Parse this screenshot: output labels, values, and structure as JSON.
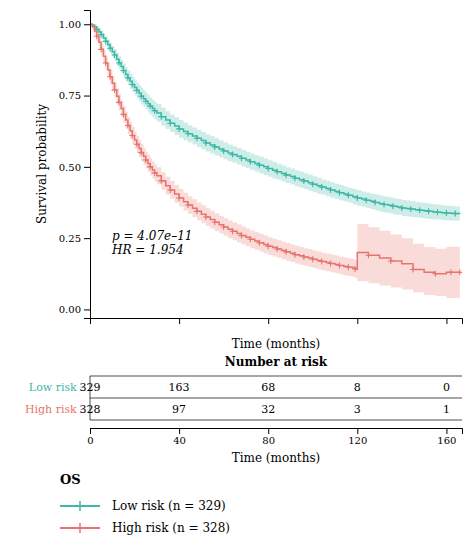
{
  "chart_data": [
    {
      "type": "step",
      "xlabel": "Time (months)",
      "ylabel": "Survival probability",
      "xlim": [
        0,
        167
      ],
      "ylim": [
        -0.03,
        1.05
      ],
      "xticks": [
        0,
        40,
        80,
        120,
        160
      ],
      "yticks": [
        {
          "value": 0.0,
          "label": "0.00"
        },
        {
          "value": 0.25,
          "label": "0.25"
        },
        {
          "value": 0.5,
          "label": "0.50"
        },
        {
          "value": 0.75,
          "label": "0.75"
        },
        {
          "value": 1.0,
          "label": "1.00"
        }
      ],
      "tick_labels": "y",
      "annotations": [
        "p = 4.07e–11\nHR = 1.954"
      ],
      "legend": "bottom",
      "legend_title": "OS",
      "series": [
        {
          "name": "Low risk (n = 329)",
          "color": "#3cb8a5",
          "marker": "plus",
          "x": [
            0,
            1,
            2,
            3,
            4,
            5,
            6,
            7,
            8,
            9,
            10,
            11,
            12,
            13,
            14,
            15,
            16,
            17,
            18,
            19,
            20,
            21,
            22,
            23,
            24,
            25,
            26,
            27,
            28,
            29,
            30,
            32,
            34,
            36,
            38,
            40,
            42,
            44,
            46,
            48,
            50,
            52,
            54,
            56,
            58,
            60,
            62,
            64,
            66,
            68,
            70,
            72,
            74,
            76,
            78,
            80,
            82,
            84,
            86,
            88,
            90,
            92,
            94,
            96,
            98,
            100,
            102,
            104,
            106,
            108,
            110,
            112,
            114,
            116,
            118,
            120,
            122,
            124,
            126,
            128,
            130,
            132,
            134,
            136,
            138,
            140,
            142,
            144,
            146,
            148,
            150,
            152,
            154,
            156,
            158,
            160,
            162,
            164,
            166
          ],
          "values": [
            1.0,
            0.997,
            0.991,
            0.982,
            0.973,
            0.964,
            0.952,
            0.94,
            0.928,
            0.916,
            0.904,
            0.892,
            0.877,
            0.865,
            0.852,
            0.838,
            0.824,
            0.812,
            0.8,
            0.789,
            0.778,
            0.768,
            0.758,
            0.748,
            0.739,
            0.73,
            0.721,
            0.713,
            0.705,
            0.697,
            0.689,
            0.676,
            0.664,
            0.653,
            0.643,
            0.633,
            0.624,
            0.616,
            0.608,
            0.6,
            0.592,
            0.584,
            0.577,
            0.57,
            0.563,
            0.556,
            0.549,
            0.543,
            0.537,
            0.53,
            0.524,
            0.518,
            0.512,
            0.506,
            0.5,
            0.494,
            0.488,
            0.483,
            0.477,
            0.471,
            0.466,
            0.46,
            0.455,
            0.45,
            0.444,
            0.439,
            0.434,
            0.429,
            0.424,
            0.419,
            0.414,
            0.409,
            0.405,
            0.4,
            0.395,
            0.391,
            0.387,
            0.383,
            0.379,
            0.375,
            0.371,
            0.368,
            0.365,
            0.362,
            0.359,
            0.356,
            0.354,
            0.352,
            0.35,
            0.348,
            0.346,
            0.344,
            0.342,
            0.341,
            0.339,
            0.338,
            0.337,
            0.336,
            0.335
          ],
          "upper": [
            1.0,
            1.0,
            0.999,
            0.993,
            0.986,
            0.978,
            0.968,
            0.957,
            0.946,
            0.935,
            0.924,
            0.913,
            0.899,
            0.887,
            0.875,
            0.862,
            0.849,
            0.838,
            0.827,
            0.816,
            0.806,
            0.796,
            0.786,
            0.777,
            0.768,
            0.759,
            0.751,
            0.743,
            0.735,
            0.727,
            0.72,
            0.707,
            0.695,
            0.684,
            0.674,
            0.664,
            0.655,
            0.646,
            0.638,
            0.63,
            0.622,
            0.614,
            0.607,
            0.6,
            0.592,
            0.585,
            0.578,
            0.572,
            0.566,
            0.559,
            0.553,
            0.547,
            0.541,
            0.535,
            0.529,
            0.523,
            0.517,
            0.511,
            0.505,
            0.499,
            0.494,
            0.488,
            0.483,
            0.478,
            0.472,
            0.467,
            0.462,
            0.456,
            0.451,
            0.446,
            0.441,
            0.436,
            0.431,
            0.426,
            0.422,
            0.418,
            0.414,
            0.41,
            0.406,
            0.403,
            0.399,
            0.396,
            0.393,
            0.39,
            0.387,
            0.384,
            0.382,
            0.38,
            0.377,
            0.375,
            0.373,
            0.371,
            0.369,
            0.367,
            0.365,
            0.364,
            0.362,
            0.361,
            0.36
          ],
          "lower": [
            1.0,
            0.994,
            0.983,
            0.971,
            0.96,
            0.95,
            0.936,
            0.923,
            0.91,
            0.897,
            0.884,
            0.871,
            0.855,
            0.843,
            0.829,
            0.814,
            0.799,
            0.786,
            0.773,
            0.762,
            0.75,
            0.74,
            0.73,
            0.719,
            0.71,
            0.701,
            0.691,
            0.683,
            0.675,
            0.667,
            0.658,
            0.645,
            0.633,
            0.622,
            0.612,
            0.602,
            0.593,
            0.586,
            0.578,
            0.57,
            0.562,
            0.554,
            0.547,
            0.54,
            0.534,
            0.527,
            0.52,
            0.514,
            0.508,
            0.501,
            0.495,
            0.489,
            0.483,
            0.477,
            0.471,
            0.465,
            0.459,
            0.455,
            0.449,
            0.443,
            0.438,
            0.432,
            0.427,
            0.422,
            0.416,
            0.411,
            0.406,
            0.402,
            0.397,
            0.392,
            0.387,
            0.382,
            0.379,
            0.374,
            0.368,
            0.364,
            0.36,
            0.356,
            0.352,
            0.347,
            0.343,
            0.34,
            0.337,
            0.334,
            0.331,
            0.328,
            0.326,
            0.324,
            0.323,
            0.321,
            0.319,
            0.317,
            0.315,
            0.315,
            0.313,
            0.312,
            0.312,
            0.311,
            0.31
          ]
        },
        {
          "name": "High risk (n = 328)",
          "color": "#e8736c",
          "marker": "plus",
          "x": [
            0,
            1,
            2,
            3,
            4,
            5,
            6,
            7,
            8,
            9,
            10,
            11,
            12,
            13,
            14,
            15,
            16,
            17,
            18,
            19,
            20,
            21,
            22,
            23,
            24,
            25,
            26,
            27,
            28,
            29,
            30,
            32,
            34,
            36,
            38,
            40,
            42,
            44,
            46,
            48,
            50,
            52,
            54,
            56,
            58,
            60,
            62,
            64,
            66,
            68,
            70,
            72,
            74,
            76,
            78,
            80,
            82,
            84,
            86,
            88,
            90,
            92,
            94,
            96,
            98,
            100,
            102,
            104,
            106,
            108,
            110,
            112,
            114,
            116,
            118,
            119,
            120,
            125,
            130,
            135,
            140,
            145,
            150,
            155,
            160,
            162,
            164,
            166
          ],
          "values": [
            1.0,
            0.991,
            0.976,
            0.958,
            0.937,
            0.912,
            0.888,
            0.864,
            0.84,
            0.816,
            0.793,
            0.77,
            0.748,
            0.726,
            0.705,
            0.684,
            0.664,
            0.645,
            0.627,
            0.61,
            0.594,
            0.579,
            0.564,
            0.55,
            0.537,
            0.524,
            0.512,
            0.5,
            0.489,
            0.479,
            0.469,
            0.451,
            0.434,
            0.419,
            0.405,
            0.391,
            0.378,
            0.366,
            0.355,
            0.344,
            0.334,
            0.324,
            0.315,
            0.306,
            0.297,
            0.289,
            0.281,
            0.274,
            0.266,
            0.259,
            0.253,
            0.246,
            0.24,
            0.234,
            0.228,
            0.222,
            0.217,
            0.212,
            0.207,
            0.202,
            0.197,
            0.192,
            0.188,
            0.184,
            0.18,
            0.176,
            0.172,
            0.168,
            0.165,
            0.161,
            0.158,
            0.154,
            0.151,
            0.148,
            0.145,
            0.142,
            0.2,
            0.19,
            0.18,
            0.17,
            0.16,
            0.14,
            0.13,
            0.125,
            0.13,
            0.13,
            0.13,
            0.13
          ],
          "upper": [
            1.0,
            0.999,
            0.99,
            0.975,
            0.956,
            0.933,
            0.91,
            0.887,
            0.864,
            0.841,
            0.819,
            0.797,
            0.775,
            0.754,
            0.733,
            0.713,
            0.693,
            0.675,
            0.657,
            0.64,
            0.624,
            0.609,
            0.594,
            0.58,
            0.567,
            0.554,
            0.542,
            0.53,
            0.519,
            0.509,
            0.499,
            0.481,
            0.465,
            0.45,
            0.436,
            0.422,
            0.409,
            0.397,
            0.386,
            0.375,
            0.365,
            0.355,
            0.346,
            0.337,
            0.328,
            0.32,
            0.312,
            0.305,
            0.298,
            0.291,
            0.284,
            0.277,
            0.271,
            0.265,
            0.259,
            0.253,
            0.248,
            0.243,
            0.238,
            0.233,
            0.228,
            0.223,
            0.219,
            0.215,
            0.211,
            0.207,
            0.203,
            0.199,
            0.196,
            0.192,
            0.189,
            0.185,
            0.182,
            0.179,
            0.176,
            0.173,
            0.3,
            0.288,
            0.276,
            0.263,
            0.25,
            0.23,
            0.219,
            0.213,
            0.22,
            0.22,
            0.22,
            0.22
          ],
          "lower": [
            1.0,
            0.983,
            0.962,
            0.941,
            0.918,
            0.891,
            0.866,
            0.841,
            0.816,
            0.791,
            0.767,
            0.743,
            0.721,
            0.698,
            0.677,
            0.655,
            0.635,
            0.615,
            0.597,
            0.58,
            0.564,
            0.549,
            0.534,
            0.52,
            0.507,
            0.494,
            0.482,
            0.47,
            0.459,
            0.449,
            0.439,
            0.421,
            0.403,
            0.388,
            0.374,
            0.36,
            0.347,
            0.335,
            0.324,
            0.313,
            0.303,
            0.293,
            0.284,
            0.275,
            0.266,
            0.258,
            0.25,
            0.243,
            0.235,
            0.228,
            0.222,
            0.215,
            0.209,
            0.203,
            0.197,
            0.191,
            0.186,
            0.181,
            0.176,
            0.171,
            0.166,
            0.161,
            0.157,
            0.153,
            0.149,
            0.145,
            0.141,
            0.137,
            0.134,
            0.13,
            0.127,
            0.123,
            0.12,
            0.117,
            0.114,
            0.111,
            0.1,
            0.092,
            0.084,
            0.077,
            0.07,
            0.06,
            0.051,
            0.047,
            0.04,
            0.04,
            0.04,
            0.04
          ]
        }
      ]
    },
    {
      "type": "table",
      "title": "Number at risk",
      "xlabel": "Time (months)",
      "xlim": [
        0,
        167
      ],
      "xticks": [
        0,
        40,
        80,
        120,
        160
      ],
      "tick_labels": "x",
      "x": [
        0,
        40,
        80,
        120,
        160
      ],
      "series": [
        {
          "name": "Low risk -",
          "color": "#3cb8a5",
          "values": [
            329,
            163,
            68,
            8,
            0
          ]
        },
        {
          "name": "High risk -",
          "color": "#e8736c",
          "values": [
            328,
            97,
            32,
            3,
            1
          ]
        }
      ]
    }
  ]
}
